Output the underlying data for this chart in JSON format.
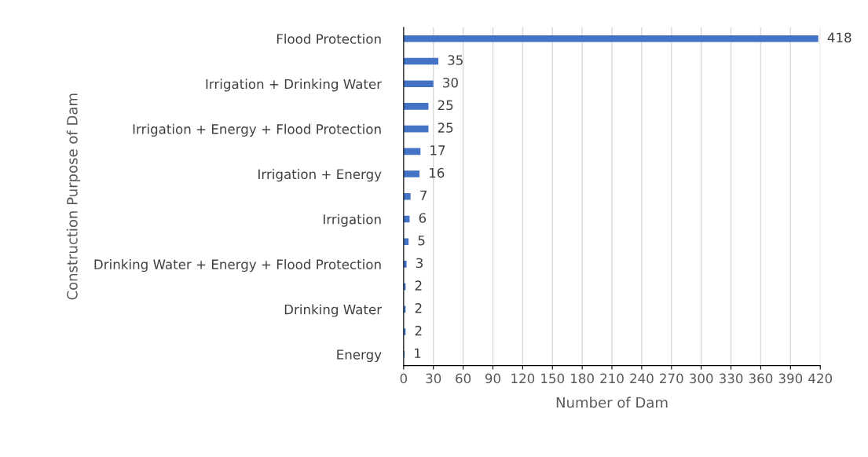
{
  "chart_data": {
    "type": "bar",
    "orientation": "horizontal",
    "xlabel": "Number of Dam",
    "ylabel": "Construction Purpose of Dam",
    "categories": [
      "Flood Protection",
      null,
      "Irrigation + Drinking Water",
      null,
      "Irrigation + Energy + Flood Protection",
      null,
      "Irrigation + Energy",
      null,
      "Irrigation",
      null,
      "Drinking Water + Energy + Flood Protection",
      null,
      "Drinking Water",
      null,
      "Energy"
    ],
    "values": [
      418,
      35,
      30,
      25,
      25,
      17,
      16,
      7,
      6,
      5,
      3,
      2,
      2,
      2,
      1
    ],
    "color": "#4472c4",
    "data_labels": true,
    "grid": "x",
    "xlim": [
      0,
      420
    ],
    "xticks": [
      0,
      30,
      60,
      90,
      120,
      150,
      180,
      210,
      240,
      270,
      300,
      330,
      360,
      390,
      420
    ]
  }
}
